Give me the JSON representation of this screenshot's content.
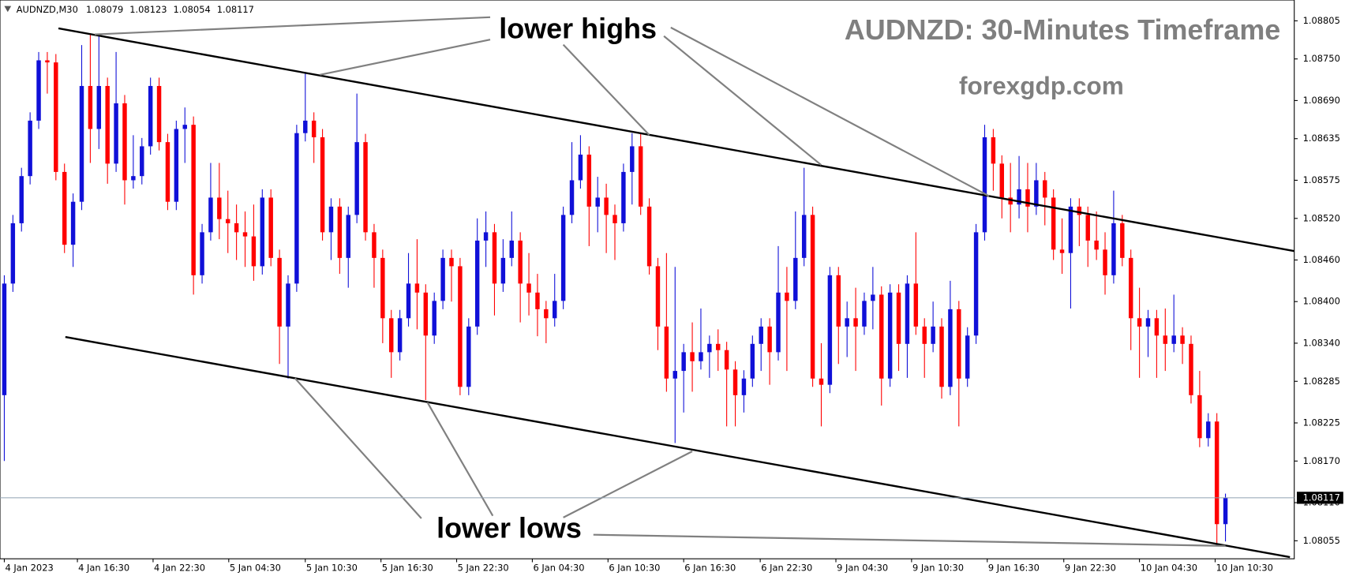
{
  "chart_data": {
    "type": "candlestick",
    "symbol": "AUDNZD,M30",
    "title": "AUDNZD: 30-Minutes Timeframe",
    "subtitle": "forexgdp.com",
    "annotations": [
      "lower highs",
      "lower lows"
    ],
    "up_color": "#1010d8",
    "down_color": "#ff0000",
    "xlim": [
      -0.5,
      150
    ],
    "xticks": [
      {
        "value": 0,
        "label": "4 Jan 2023"
      },
      {
        "value": 8.5,
        "label": "4 Jan 16:30"
      },
      {
        "value": 17.3,
        "label": "4 Jan 22:30"
      },
      {
        "value": 26.1,
        "label": "5 Jan 04:30"
      },
      {
        "value": 35,
        "label": "5 Jan 10:30"
      },
      {
        "value": 43.8,
        "label": "5 Jan 16:30"
      },
      {
        "value": 52.6,
        "label": "5 Jan 22:30"
      },
      {
        "value": 61.4,
        "label": "6 Jan 04:30"
      },
      {
        "value": 70.2,
        "label": "6 Jan 10:30"
      },
      {
        "value": 79,
        "label": "6 Jan 16:30"
      },
      {
        "value": 87.9,
        "label": "6 Jan 22:30"
      },
      {
        "value": 96.7,
        "label": "9 Jan 04:30"
      },
      {
        "value": 105.5,
        "label": "9 Jan 10:30"
      },
      {
        "value": 114.3,
        "label": "9 Jan 16:30"
      },
      {
        "value": 123.2,
        "label": "9 Jan 22:30"
      },
      {
        "value": 132,
        "label": "10 Jan 04:30"
      },
      {
        "value": 140.8,
        "label": "10 Jan 10:30"
      }
    ],
    "ylim": [
      1.08029,
      1.08835
    ],
    "yticks": [
      1.08805,
      {
        "value": 1.0875,
        "label": "1.08750"
      },
      {
        "value": 1.0869,
        "label": "1.08690"
      },
      1.08635,
      1.08575,
      {
        "value": 1.0852,
        "label": "1.08520"
      },
      {
        "value": 1.0846,
        "label": "1.08460"
      },
      {
        "value": 1.084,
        "label": "1.08400"
      },
      {
        "value": 1.0834,
        "label": "1.08340"
      },
      1.08285,
      1.08225,
      {
        "value": 1.0817,
        "label": "1.08170"
      },
      {
        "value": 1.0811,
        "label": "1.08110"
      },
      1.08055
    ],
    "ohlc": [
      [
        1.08265,
        1.08438,
        1.0817,
        1.08426
      ],
      [
        1.08426,
        1.08525,
        1.08414,
        1.08513
      ],
      [
        1.08513,
        1.08593,
        1.08501,
        1.08581
      ],
      [
        1.08581,
        1.08673,
        1.08569,
        1.08661
      ],
      [
        1.08661,
        1.0876,
        1.08649,
        1.08748
      ],
      [
        1.08748,
        1.0876,
        1.087,
        1.08745
      ],
      [
        1.08745,
        1.08757,
        1.08575,
        1.08587
      ],
      [
        1.08587,
        1.08599,
        1.0847,
        1.08482
      ],
      [
        1.08482,
        1.08556,
        1.0845,
        1.08544
      ],
      [
        1.08544,
        1.0877,
        1.08532,
        1.08711
      ],
      [
        1.08711,
        1.08785,
        1.086,
        1.08649
      ],
      [
        1.08649,
        1.08785,
        1.0862,
        1.08711
      ],
      [
        1.08711,
        1.08723,
        1.0857,
        1.08599
      ],
      [
        1.08599,
        1.0876,
        1.08587,
        1.08686
      ],
      [
        1.08686,
        1.08698,
        1.0854,
        1.08575
      ],
      [
        1.08575,
        1.0864,
        1.08563,
        1.08581
      ],
      [
        1.08581,
        1.08636,
        1.08569,
        1.08624
      ],
      [
        1.08624,
        1.08723,
        1.08612,
        1.08711
      ],
      [
        1.08711,
        1.08723,
        1.08618,
        1.0863
      ],
      [
        1.0863,
        1.08642,
        1.08532,
        1.08544
      ],
      [
        1.08544,
        1.08661,
        1.08532,
        1.08649
      ],
      [
        1.08649,
        1.0868,
        1.086,
        1.08655
      ],
      [
        1.08655,
        1.08667,
        1.0841,
        1.08438
      ],
      [
        1.08438,
        1.08512,
        1.08426,
        1.085
      ],
      [
        1.085,
        1.086,
        1.08488,
        1.0855
      ],
      [
        1.0855,
        1.086,
        1.0849,
        1.08519
      ],
      [
        1.08519,
        1.0856,
        1.0847,
        1.08513
      ],
      [
        1.08513,
        1.0854,
        1.0846,
        1.085
      ],
      [
        1.085,
        1.0853,
        1.0845,
        1.08494
      ],
      [
        1.08494,
        1.0854,
        1.0843,
        1.08451
      ],
      [
        1.08451,
        1.08562,
        1.08439,
        1.0855
      ],
      [
        1.0855,
        1.08562,
        1.08451,
        1.08463
      ],
      [
        1.08463,
        1.08475,
        1.0831,
        1.08364
      ],
      [
        1.08364,
        1.08438,
        1.08289,
        1.08426
      ],
      [
        1.08426,
        1.08655,
        1.08414,
        1.08643
      ],
      [
        1.08643,
        1.0873,
        1.08631,
        1.08661
      ],
      [
        1.08661,
        1.08673,
        1.086,
        1.08637
      ],
      [
        1.08637,
        1.08649,
        1.08488,
        1.085
      ],
      [
        1.085,
        1.08549,
        1.0846,
        1.08537
      ],
      [
        1.08537,
        1.08549,
        1.0844,
        1.08463
      ],
      [
        1.08463,
        1.08537,
        1.0842,
        1.08525
      ],
      [
        1.08525,
        1.087,
        1.08513,
        1.0863
      ],
      [
        1.0863,
        1.08642,
        1.08488,
        1.085
      ],
      [
        1.085,
        1.08512,
        1.0842,
        1.08463
      ],
      [
        1.08463,
        1.08475,
        1.0834,
        1.08376
      ],
      [
        1.08376,
        1.08388,
        1.0829,
        1.08327
      ],
      [
        1.08327,
        1.08388,
        1.08315,
        1.08376
      ],
      [
        1.08376,
        1.0847,
        1.08364,
        1.08426
      ],
      [
        1.08426,
        1.0849,
        1.0836,
        1.08413
      ],
      [
        1.08413,
        1.08425,
        1.08258,
        1.08351
      ],
      [
        1.08351,
        1.08413,
        1.08339,
        1.08401
      ],
      [
        1.08401,
        1.08475,
        1.08389,
        1.08463
      ],
      [
        1.08463,
        1.08475,
        1.084,
        1.08451
      ],
      [
        1.08451,
        1.08463,
        1.08265,
        1.08277
      ],
      [
        1.08277,
        1.08376,
        1.08265,
        1.08364
      ],
      [
        1.08364,
        1.0852,
        1.08352,
        1.08488
      ],
      [
        1.08488,
        1.0853,
        1.0845,
        1.085
      ],
      [
        1.085,
        1.08512,
        1.0838,
        1.08426
      ],
      [
        1.08426,
        1.0849,
        1.08414,
        1.08463
      ],
      [
        1.08463,
        1.0853,
        1.08451,
        1.08488
      ],
      [
        1.08488,
        1.085,
        1.0837,
        1.08426
      ],
      [
        1.08426,
        1.0847,
        1.0838,
        1.08413
      ],
      [
        1.08413,
        1.0844,
        1.0835,
        1.08389
      ],
      [
        1.08389,
        1.08401,
        1.0834,
        1.08376
      ],
      [
        1.08376,
        1.0844,
        1.08364,
        1.08401
      ],
      [
        1.08401,
        1.08537,
        1.08389,
        1.08525
      ],
      [
        1.08525,
        1.0863,
        1.08513,
        1.08575
      ],
      [
        1.08575,
        1.0864,
        1.08563,
        1.08612
      ],
      [
        1.08612,
        1.08624,
        1.0848,
        1.08537
      ],
      [
        1.08537,
        1.0858,
        1.085,
        1.0855
      ],
      [
        1.0855,
        1.0857,
        1.0847,
        1.08525
      ],
      [
        1.08525,
        1.0854,
        1.0846,
        1.08513
      ],
      [
        1.08513,
        1.08599,
        1.08501,
        1.08587
      ],
      [
        1.08587,
        1.08643,
        1.0854,
        1.08624
      ],
      [
        1.08624,
        1.08643,
        1.08525,
        1.08537
      ],
      [
        1.08537,
        1.08549,
        1.08439,
        1.08451
      ],
      [
        1.08451,
        1.08463,
        1.0833,
        1.08364
      ],
      [
        1.08364,
        1.0847,
        1.0827,
        1.08289
      ],
      [
        1.08289,
        1.0845,
        1.08196,
        1.083
      ],
      [
        1.083,
        1.08339,
        1.0824,
        1.08327
      ],
      [
        1.08327,
        1.0837,
        1.0827,
        1.08314
      ],
      [
        1.08314,
        1.0839,
        1.08302,
        1.08327
      ],
      [
        1.08327,
        1.08351,
        1.0829,
        1.08339
      ],
      [
        1.08339,
        1.0836,
        1.083,
        1.0833
      ],
      [
        1.0833,
        1.08342,
        1.0822,
        1.08302
      ],
      [
        1.08302,
        1.08314,
        1.0822,
        1.08265
      ],
      [
        1.08265,
        1.08301,
        1.0824,
        1.08289
      ],
      [
        1.08289,
        1.08351,
        1.08277,
        1.08339
      ],
      [
        1.08339,
        1.08376,
        1.083,
        1.08364
      ],
      [
        1.08364,
        1.08376,
        1.0828,
        1.08327
      ],
      [
        1.08327,
        1.0848,
        1.08315,
        1.08413
      ],
      [
        1.08413,
        1.0845,
        1.083,
        1.08401
      ],
      [
        1.08401,
        1.0853,
        1.08389,
        1.08463
      ],
      [
        1.08463,
        1.08593,
        1.08451,
        1.08525
      ],
      [
        1.08525,
        1.08537,
        1.08277,
        1.08289
      ],
      [
        1.08289,
        1.0834,
        1.0822,
        1.0828
      ],
      [
        1.0828,
        1.0845,
        1.08268,
        1.08438
      ],
      [
        1.08438,
        1.0845,
        1.0831,
        1.08364
      ],
      [
        1.08364,
        1.084,
        1.0832,
        1.08376
      ],
      [
        1.08376,
        1.0842,
        1.083,
        1.08364
      ],
      [
        1.08364,
        1.08413,
        1.08352,
        1.08401
      ],
      [
        1.08401,
        1.0845,
        1.0836,
        1.0841
      ],
      [
        1.0841,
        1.08422,
        1.0825,
        1.08289
      ],
      [
        1.08289,
        1.08425,
        1.08277,
        1.08413
      ],
      [
        1.08413,
        1.08425,
        1.083,
        1.08339
      ],
      [
        1.08339,
        1.08438,
        1.0829,
        1.08426
      ],
      [
        1.08426,
        1.085,
        1.08352,
        1.08364
      ],
      [
        1.08364,
        1.08376,
        1.0829,
        1.08339
      ],
      [
        1.08339,
        1.084,
        1.08327,
        1.08364
      ],
      [
        1.08364,
        1.08376,
        1.0826,
        1.08277
      ],
      [
        1.08277,
        1.0843,
        1.08265,
        1.08389
      ],
      [
        1.08389,
        1.08401,
        1.0822,
        1.08289
      ],
      [
        1.08289,
        1.08363,
        1.08277,
        1.08351
      ],
      [
        1.08351,
        1.08512,
        1.08339,
        1.085
      ],
      [
        1.085,
        1.08655,
        1.08488,
        1.08637
      ],
      [
        1.08637,
        1.08649,
        1.0856,
        1.08599
      ],
      [
        1.08599,
        1.08611,
        1.0852,
        1.0855
      ],
      [
        1.0855,
        1.086,
        1.085,
        1.0854
      ],
      [
        1.0854,
        1.0861,
        1.0852,
        1.08562
      ],
      [
        1.08562,
        1.086,
        1.085,
        1.08537
      ],
      [
        1.08537,
        1.086,
        1.08525,
        1.08575
      ],
      [
        1.08575,
        1.08587,
        1.0851,
        1.0855
      ],
      [
        1.0855,
        1.08562,
        1.0846,
        1.08475
      ],
      [
        1.08475,
        1.0852,
        1.0844,
        1.0847
      ],
      [
        1.0847,
        1.08549,
        1.0839,
        1.08537
      ],
      [
        1.08537,
        1.08549,
        1.0848,
        1.08525
      ],
      [
        1.08525,
        1.08537,
        1.0845,
        1.08488
      ],
      [
        1.08488,
        1.0853,
        1.0846,
        1.08475
      ],
      [
        1.08475,
        1.085,
        1.0841,
        1.08438
      ],
      [
        1.08438,
        1.0856,
        1.08426,
        1.08513
      ],
      [
        1.08513,
        1.08525,
        1.08451,
        1.08463
      ],
      [
        1.08463,
        1.08475,
        1.0833,
        1.08376
      ],
      [
        1.08376,
        1.0842,
        1.0829,
        1.08364
      ],
      [
        1.08364,
        1.08388,
        1.0832,
        1.08376
      ],
      [
        1.08376,
        1.08388,
        1.0829,
        1.08351
      ],
      [
        1.08351,
        1.0839,
        1.083,
        1.08339
      ],
      [
        1.08339,
        1.0841,
        1.08327,
        1.08351
      ],
      [
        1.08351,
        1.08363,
        1.0831,
        1.08339
      ],
      [
        1.08339,
        1.08351,
        1.08253,
        1.08265
      ],
      [
        1.08265,
        1.083,
        1.0819,
        1.08203
      ],
      [
        1.08203,
        1.08239,
        1.08191,
        1.08227
      ],
      [
        1.08227,
        1.08239,
        1.08048,
        1.08079
      ],
      [
        1.08079,
        1.08123,
        1.08054,
        1.08117
      ]
    ]
  }
}
